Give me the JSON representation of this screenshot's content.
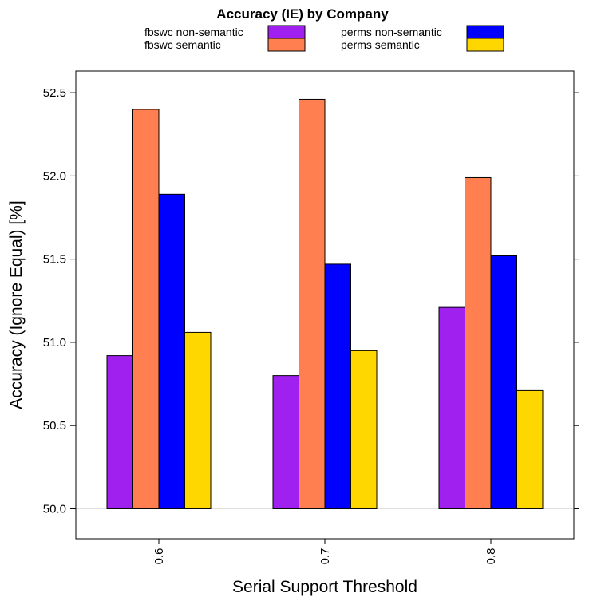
{
  "chart_data": {
    "type": "bar",
    "title": "Accuracy (IE) by Company",
    "xlabel": "Serial Support Threshold",
    "ylabel": "Accuracy (Ignore Equal) [%]",
    "categories": [
      "0.6",
      "0.7",
      "0.8"
    ],
    "ylim": [
      49.82,
      52.63
    ],
    "yticks": [
      "50.0",
      "50.5",
      "51.0",
      "51.5",
      "52.0",
      "52.5"
    ],
    "baseline": 50.0,
    "legend_position": "top",
    "series": [
      {
        "name": "fbswc non-semantic",
        "color": "#A020F0",
        "values": [
          50.92,
          50.8,
          51.21
        ]
      },
      {
        "name": "fbswc semantic",
        "color": "#FF7F50",
        "values": [
          52.4,
          52.46,
          51.99
        ]
      },
      {
        "name": "perms non-semantic",
        "color": "#0000FF",
        "values": [
          51.89,
          51.47,
          51.52
        ]
      },
      {
        "name": "perms semantic",
        "color": "#FFD700",
        "values": [
          51.06,
          50.95,
          50.71
        ]
      }
    ]
  }
}
